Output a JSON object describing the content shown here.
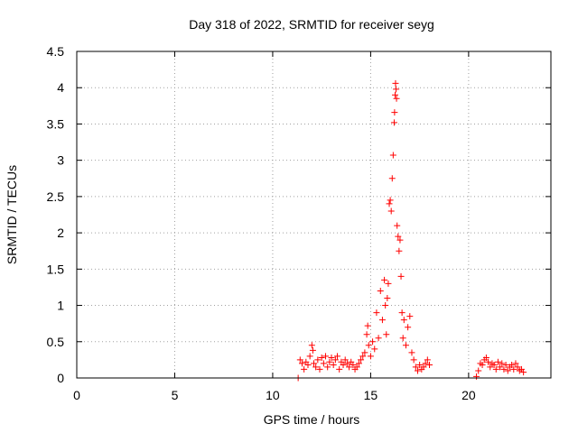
{
  "chart_data": {
    "type": "scatter",
    "title": "Day 318 of 2022, SRMTID for receiver seyg",
    "xlabel": "GPS time / hours",
    "ylabel": "SRMTID / TECUs",
    "xlim": [
      0,
      24.2
    ],
    "ylim": [
      0,
      4.5
    ],
    "xticks": [
      0,
      5,
      10,
      15,
      20
    ],
    "xtick_labels": [
      "0",
      "5",
      "10",
      "15",
      "20"
    ],
    "yticks": [
      0,
      0.5,
      1,
      1.5,
      2,
      2.5,
      3,
      3.5,
      4,
      4.5
    ],
    "ytick_labels": [
      "0",
      "0.5",
      "1",
      "1.5",
      "2",
      "2.5",
      "3",
      "3.5",
      "4",
      "4.5"
    ],
    "grid": true,
    "marker": "+",
    "color": "#ff0000",
    "series": [
      {
        "name": "seyg",
        "points": [
          [
            11.3,
            0.0
          ],
          [
            11.4,
            0.25
          ],
          [
            11.5,
            0.2
          ],
          [
            11.6,
            0.12
          ],
          [
            11.7,
            0.22
          ],
          [
            11.8,
            0.18
          ],
          [
            11.9,
            0.3
          ],
          [
            12.0,
            0.45
          ],
          [
            12.05,
            0.38
          ],
          [
            12.1,
            0.2
          ],
          [
            12.2,
            0.15
          ],
          [
            12.3,
            0.25
          ],
          [
            12.4,
            0.12
          ],
          [
            12.5,
            0.28
          ],
          [
            12.6,
            0.2
          ],
          [
            12.7,
            0.3
          ],
          [
            12.8,
            0.15
          ],
          [
            12.9,
            0.22
          ],
          [
            13.0,
            0.28
          ],
          [
            13.1,
            0.18
          ],
          [
            13.2,
            0.25
          ],
          [
            13.3,
            0.3
          ],
          [
            13.4,
            0.12
          ],
          [
            13.5,
            0.22
          ],
          [
            13.6,
            0.18
          ],
          [
            13.7,
            0.25
          ],
          [
            13.8,
            0.2
          ],
          [
            13.9,
            0.15
          ],
          [
            14.0,
            0.22
          ],
          [
            14.1,
            0.18
          ],
          [
            14.2,
            0.12
          ],
          [
            14.3,
            0.15
          ],
          [
            14.4,
            0.2
          ],
          [
            14.5,
            0.25
          ],
          [
            14.6,
            0.3
          ],
          [
            14.7,
            0.35
          ],
          [
            14.8,
            0.6
          ],
          [
            14.85,
            0.72
          ],
          [
            14.9,
            0.45
          ],
          [
            15.0,
            0.3
          ],
          [
            15.1,
            0.5
          ],
          [
            15.2,
            0.4
          ],
          [
            15.3,
            0.9
          ],
          [
            15.4,
            0.55
          ],
          [
            15.5,
            1.2
          ],
          [
            15.6,
            0.8
          ],
          [
            15.7,
            1.35
          ],
          [
            15.75,
            1.0
          ],
          [
            15.8,
            0.6
          ],
          [
            15.85,
            1.1
          ],
          [
            15.9,
            1.3
          ],
          [
            15.95,
            2.4
          ],
          [
            16.0,
            2.45
          ],
          [
            16.05,
            2.3
          ],
          [
            16.1,
            2.75
          ],
          [
            16.15,
            3.07
          ],
          [
            16.2,
            3.52
          ],
          [
            16.22,
            3.66
          ],
          [
            16.25,
            3.9
          ],
          [
            16.27,
            4.06
          ],
          [
            16.3,
            3.98
          ],
          [
            16.32,
            3.85
          ],
          [
            16.35,
            2.1
          ],
          [
            16.4,
            1.95
          ],
          [
            16.45,
            1.75
          ],
          [
            16.5,
            1.9
          ],
          [
            16.55,
            1.4
          ],
          [
            16.6,
            0.9
          ],
          [
            16.65,
            0.55
          ],
          [
            16.7,
            0.8
          ],
          [
            16.8,
            0.45
          ],
          [
            16.9,
            0.7
          ],
          [
            17.0,
            0.85
          ],
          [
            17.1,
            0.35
          ],
          [
            17.2,
            0.25
          ],
          [
            17.3,
            0.15
          ],
          [
            17.4,
            0.1
          ],
          [
            17.5,
            0.18
          ],
          [
            17.6,
            0.12
          ],
          [
            17.7,
            0.15
          ],
          [
            17.8,
            0.2
          ],
          [
            17.9,
            0.25
          ],
          [
            18.0,
            0.18
          ],
          [
            20.4,
            0.02
          ],
          [
            20.5,
            0.1
          ],
          [
            20.6,
            0.2
          ],
          [
            20.7,
            0.18
          ],
          [
            20.8,
            0.25
          ],
          [
            20.9,
            0.28
          ],
          [
            21.0,
            0.22
          ],
          [
            21.1,
            0.15
          ],
          [
            21.2,
            0.2
          ],
          [
            21.3,
            0.18
          ],
          [
            21.4,
            0.12
          ],
          [
            21.5,
            0.22
          ],
          [
            21.6,
            0.15
          ],
          [
            21.7,
            0.2
          ],
          [
            21.8,
            0.12
          ],
          [
            21.9,
            0.18
          ],
          [
            22.0,
            0.1
          ],
          [
            22.1,
            0.15
          ],
          [
            22.2,
            0.18
          ],
          [
            22.3,
            0.12
          ],
          [
            22.4,
            0.2
          ],
          [
            22.5,
            0.15
          ],
          [
            22.6,
            0.1
          ],
          [
            22.7,
            0.12
          ],
          [
            22.8,
            0.08
          ]
        ]
      }
    ]
  }
}
